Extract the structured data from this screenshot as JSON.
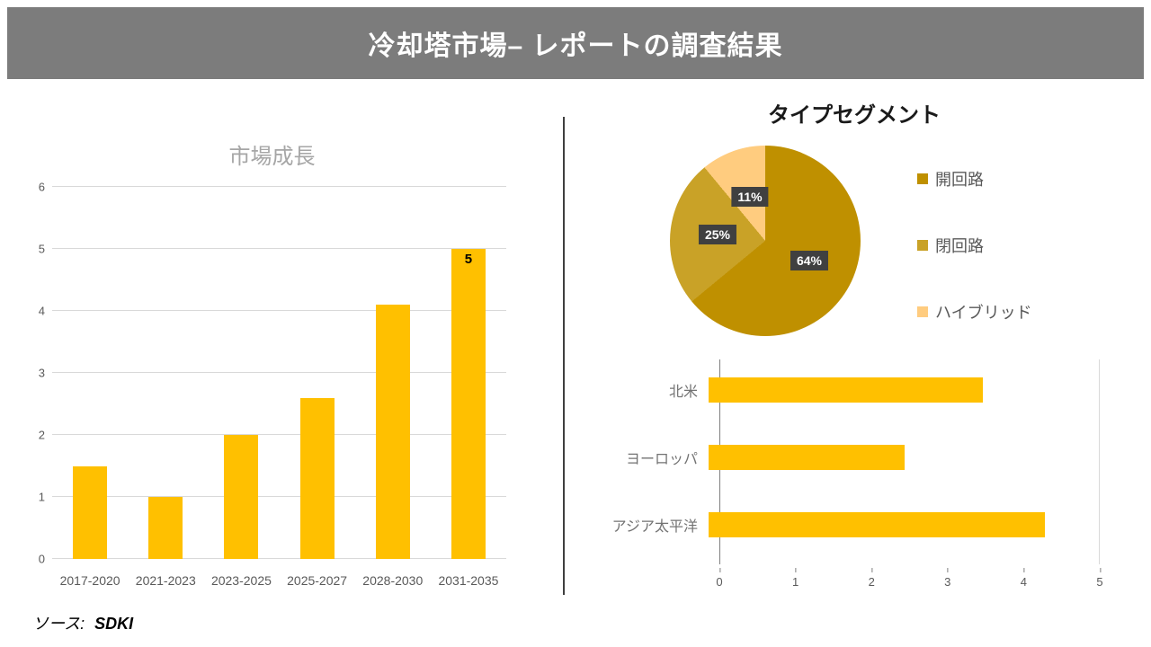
{
  "header": {
    "title": "冷却塔市場– レポートの調査結果"
  },
  "footer": {
    "source_prefix": "ソース:",
    "source_value": "SDKI"
  },
  "colors": {
    "banner_bg": "#7C7C7C",
    "bar": "#FFC000",
    "pie_open": "#BF9000",
    "pie_closed": "#C9A227",
    "pie_hybrid": "#FFCC7F",
    "label_box": "#404040",
    "grid": "#D9D9D9"
  },
  "chart_data": [
    {
      "id": "market_growth",
      "type": "bar",
      "title": "市場成長",
      "categories": [
        "2017-2020",
        "2021-2023",
        "2023-2025",
        "2025-2027",
        "2028-2030",
        "2031-2035"
      ],
      "values": [
        1.5,
        1,
        2,
        2.6,
        4.1,
        5
      ],
      "data_labels": [
        "",
        "",
        "",
        "",
        "",
        "5"
      ],
      "xlabel": "",
      "ylabel": "",
      "ylim": [
        0,
        6
      ],
      "ytick_step": 1,
      "grid": true,
      "legend": "none",
      "bar_color": "#FFC000"
    },
    {
      "id": "type_segment",
      "type": "pie",
      "title": "タイプセグメント",
      "slices": [
        {
          "label": "開回路",
          "pct": 64,
          "color": "#BF9000"
        },
        {
          "label": "閉回路",
          "pct": 25,
          "color": "#C9A227"
        },
        {
          "label": "ハイブリッド",
          "pct": 11,
          "color": "#FFCC7F"
        }
      ],
      "start_angle_deg": 0,
      "label_bg": "#404040",
      "legend_position": "right"
    },
    {
      "id": "regional",
      "type": "bar_horizontal",
      "title": "",
      "categories": [
        "北米",
        "ヨーロッパ",
        "アジア太平洋"
      ],
      "values": [
        3.5,
        2.5,
        4.3
      ],
      "xlim": [
        0,
        5
      ],
      "xtick_step": 1,
      "grid": false,
      "bar_color": "#FFC000"
    }
  ]
}
